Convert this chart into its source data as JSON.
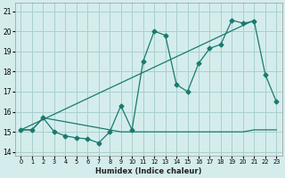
{
  "xlabel": "Humidex (Indice chaleur)",
  "bg_color": "#d4edec",
  "grid_color": "#a8d0ce",
  "line_color": "#1a7a6e",
  "xlim": [
    -0.5,
    23.5
  ],
  "ylim": [
    13.8,
    21.4
  ],
  "yticks": [
    14,
    15,
    16,
    17,
    18,
    19,
    20,
    21
  ],
  "xticks": [
    0,
    1,
    2,
    3,
    4,
    5,
    6,
    7,
    8,
    9,
    10,
    11,
    12,
    13,
    14,
    15,
    16,
    17,
    18,
    19,
    20,
    21,
    22,
    23
  ],
  "line_zigzag_x": [
    0,
    1,
    2,
    3,
    4,
    5,
    6,
    7,
    8,
    9,
    10,
    11,
    12,
    13,
    14,
    15,
    16,
    17,
    18,
    19,
    20,
    21,
    22,
    23
  ],
  "line_zigzag_y": [
    15.1,
    15.1,
    15.7,
    15.0,
    14.8,
    14.7,
    14.65,
    14.45,
    15.0,
    16.3,
    15.1,
    18.5,
    20.0,
    19.8,
    17.35,
    17.0,
    18.4,
    19.15,
    19.35,
    20.55,
    20.4,
    20.5,
    17.85,
    16.5
  ],
  "line_flat_x": [
    0,
    1,
    2,
    9,
    10,
    11,
    12,
    13,
    14,
    15,
    16,
    17,
    18,
    19,
    20,
    21,
    22,
    23
  ],
  "line_flat_y": [
    15.1,
    15.1,
    15.7,
    15.0,
    15.0,
    15.0,
    15.0,
    15.0,
    15.0,
    15.0,
    15.0,
    15.0,
    15.0,
    15.0,
    15.0,
    15.1,
    15.1,
    15.1
  ],
  "line_trend_x": [
    0,
    21
  ],
  "line_trend_y": [
    15.1,
    20.55
  ]
}
